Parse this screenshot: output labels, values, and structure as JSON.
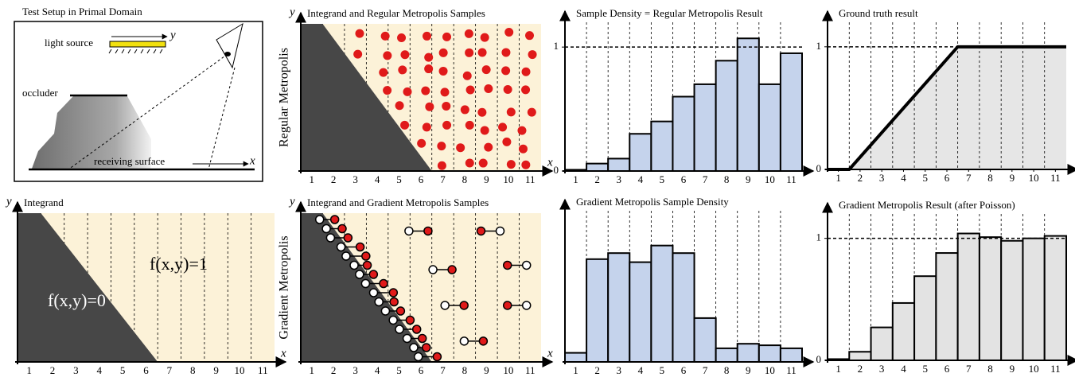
{
  "setup": {
    "title": "Test Setup in Primal Domain",
    "light_source": "light source",
    "light_axis": "y",
    "occluder": "occluder",
    "receiving_surface": "receiving surface",
    "surface_axis": "x"
  },
  "integrand": {
    "title": "Integrand",
    "x_label": "x",
    "y_label": "y",
    "region_dark": "f(x,y)=0",
    "region_light": "f(x,y)=1",
    "xticks": [
      "1",
      "2",
      "3",
      "4",
      "5",
      "6",
      "7",
      "8",
      "9",
      "10",
      "11"
    ]
  },
  "regular_samples": {
    "title": "Integrand and Regular Metropolis Samples",
    "row_label": "Regular Metropolis",
    "x_label": "x",
    "y_label": "y",
    "xticks": [
      "1",
      "2",
      "3",
      "4",
      "5",
      "6",
      "7",
      "8",
      "9",
      "10",
      "11"
    ]
  },
  "gradient_samples": {
    "title": "Integrand and Gradient Metropolis Samples",
    "row_label": "Gradient Metropolis",
    "x_label": "x",
    "y_label": "y",
    "xticks": [
      "1",
      "2",
      "3",
      "4",
      "5",
      "6",
      "7",
      "8",
      "9",
      "10",
      "11"
    ]
  },
  "chart_data": [
    {
      "type": "bar",
      "title": "Sample Density = Regular Metropolis Result",
      "categories": [
        "1",
        "2",
        "3",
        "4",
        "5",
        "6",
        "7",
        "8",
        "9",
        "10",
        "11"
      ],
      "values": [
        0.01,
        0.06,
        0.1,
        0.3,
        0.4,
        0.6,
        0.7,
        0.89,
        1.07,
        0.7,
        0.95
      ],
      "color": "#c5d3ec",
      "ylim": [
        0,
        1.2
      ],
      "yticks": [
        0,
        1
      ],
      "hline": 1,
      "grid": true
    },
    {
      "type": "line",
      "title": "Ground truth result",
      "x": [
        0.5,
        1.5,
        6.5,
        11.5
      ],
      "values": [
        0,
        0,
        1,
        1
      ],
      "color": "#e6e6e6",
      "xlim": [
        0.5,
        11.5
      ],
      "xticks": [
        1,
        2,
        3,
        4,
        5,
        6,
        7,
        8,
        9,
        10,
        11
      ],
      "ylim": [
        0,
        1.2
      ],
      "yticks": [
        0,
        1
      ],
      "hline": 1,
      "grid": true
    },
    {
      "type": "bar",
      "title": "Gradient Metropolis Sample Density",
      "categories": [
        "1",
        "2",
        "3",
        "4",
        "5",
        "6",
        "7",
        "8",
        "9",
        "10",
        "11"
      ],
      "values": [
        0.06,
        0.68,
        0.72,
        0.66,
        0.77,
        0.72,
        0.29,
        0.09,
        0.12,
        0.11,
        0.09
      ],
      "color": "#c5d3ec",
      "ylim": [
        0,
        1
      ],
      "yticks": [],
      "grid": true
    },
    {
      "type": "bar",
      "title": "Gradient Metropolis Result (after Poisson)",
      "categories": [
        "1",
        "2",
        "3",
        "4",
        "5",
        "6",
        "7",
        "8",
        "9",
        "10",
        "11"
      ],
      "values": [
        0.01,
        0.07,
        0.27,
        0.47,
        0.69,
        0.88,
        1.04,
        1.01,
        0.98,
        1.0,
        1.02
      ],
      "color": "#e3e3e3",
      "ylim": [
        0,
        1.2
      ],
      "yticks": [
        0,
        1
      ],
      "hline": 1,
      "grid": true
    }
  ]
}
